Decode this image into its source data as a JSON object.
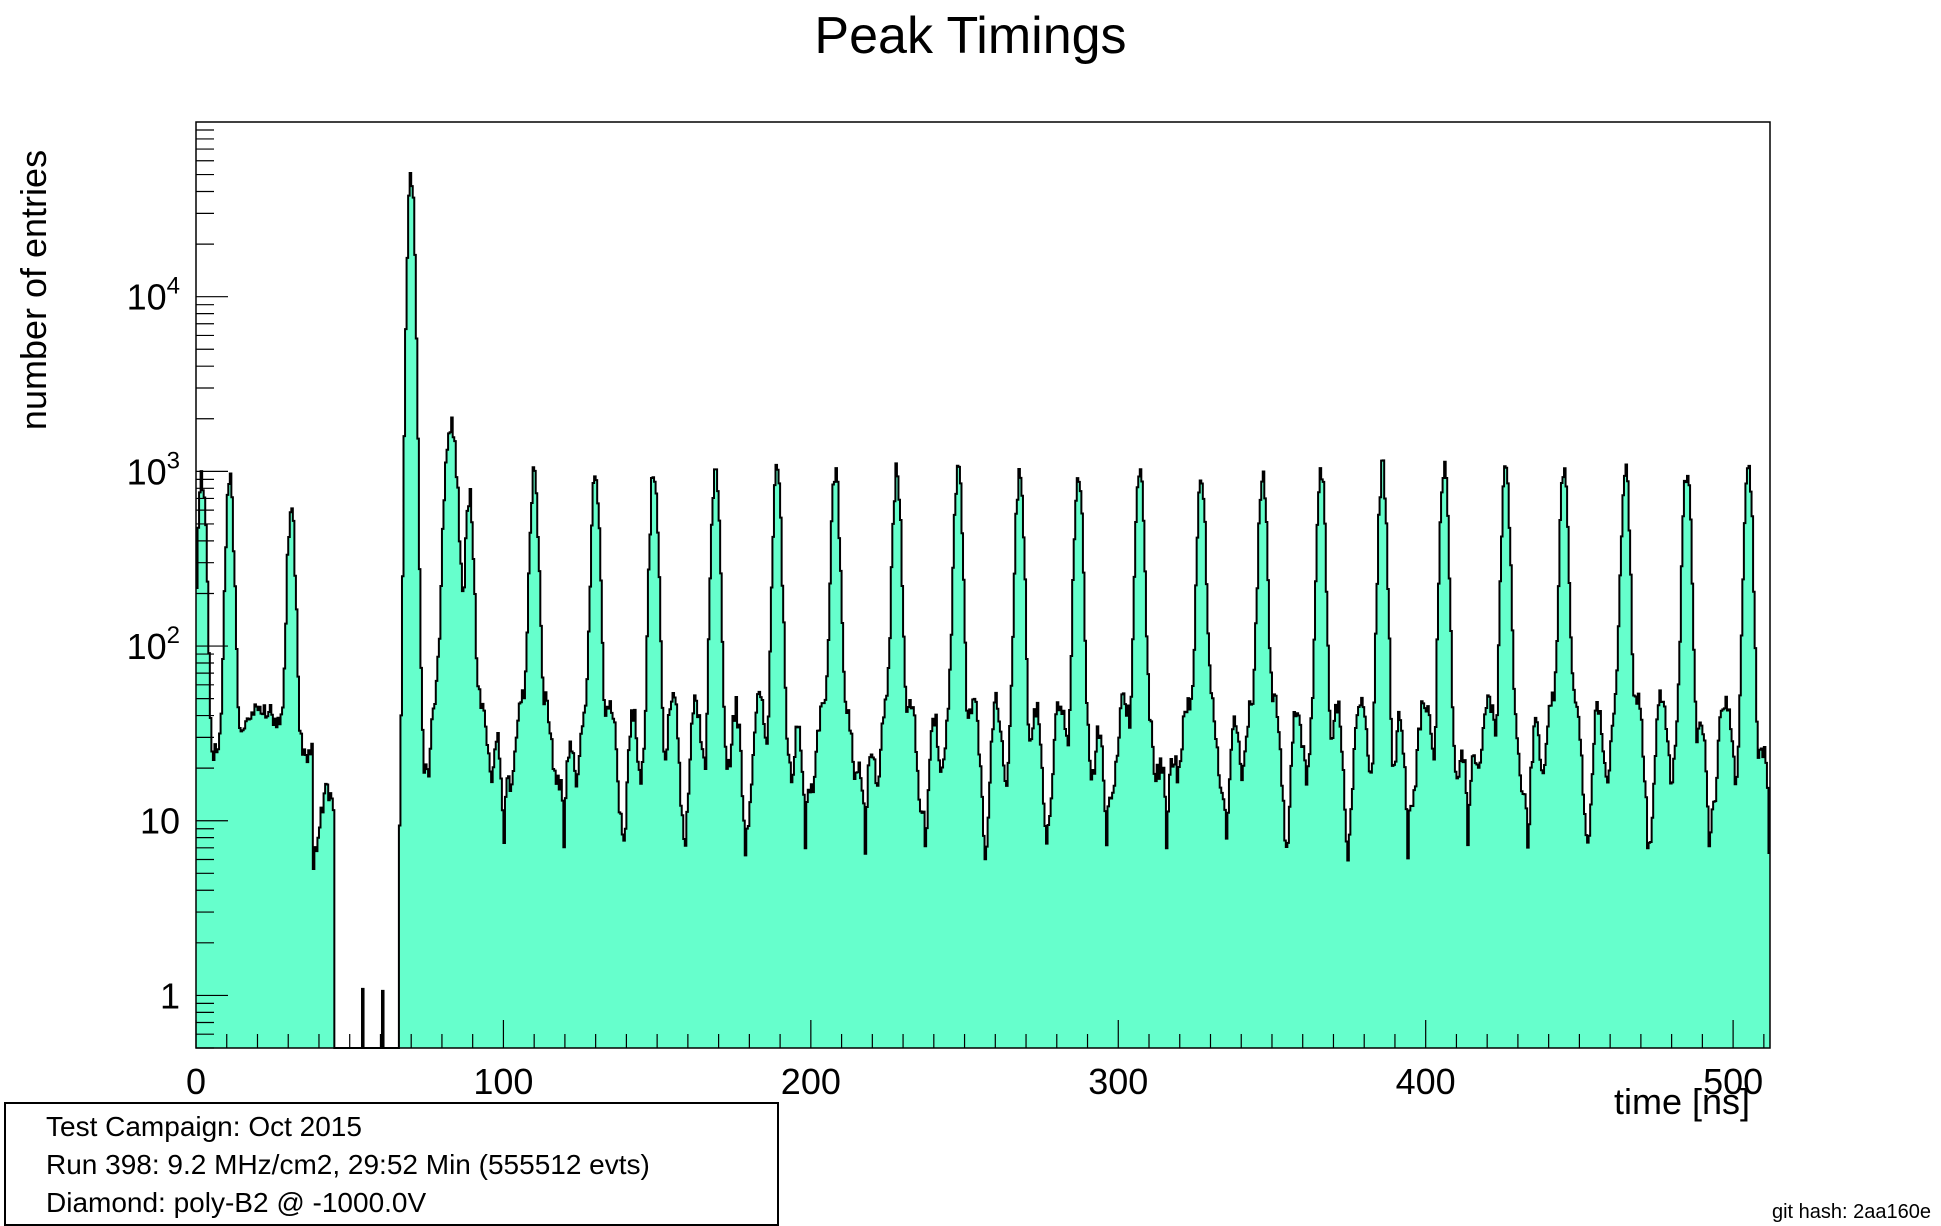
{
  "chart_data": {
    "type": "histogram",
    "title": "Peak Timings",
    "xlabel": "time [ns]",
    "ylabel": "number of entries",
    "xlim": [
      0,
      512
    ],
    "ylim": [
      0.5,
      100000
    ],
    "yscale": "log",
    "grid": false,
    "fill_color": "#66ffcc",
    "line_color": "#000000",
    "x_ticks": [
      "0",
      "100",
      "200",
      "300",
      "400",
      "500"
    ],
    "y_ticks": [
      "1",
      "10",
      "10^2",
      "10^3",
      "10^4"
    ],
    "peaks": [
      {
        "x": 2,
        "y": 900
      },
      {
        "x": 11,
        "y": 850
      },
      {
        "x": 31,
        "y": 600
      },
      {
        "x": 70,
        "y": 50000
      },
      {
        "x": 83,
        "y": 1900
      },
      {
        "x": 89,
        "y": 700
      },
      {
        "x": 110,
        "y": 1000
      },
      {
        "x": 130,
        "y": 1000
      },
      {
        "x": 149,
        "y": 1000
      },
      {
        "x": 169,
        "y": 1000
      },
      {
        "x": 189,
        "y": 1000
      },
      {
        "x": 208,
        "y": 1000
      },
      {
        "x": 228,
        "y": 1000
      },
      {
        "x": 248,
        "y": 1000
      },
      {
        "x": 268,
        "y": 1000
      },
      {
        "x": 287,
        "y": 1000
      },
      {
        "x": 307,
        "y": 1000
      },
      {
        "x": 327,
        "y": 1000
      },
      {
        "x": 347,
        "y": 1000
      },
      {
        "x": 366,
        "y": 1000
      },
      {
        "x": 386,
        "y": 1000
      },
      {
        "x": 406,
        "y": 1000
      },
      {
        "x": 426,
        "y": 1000
      },
      {
        "x": 445,
        "y": 1000
      },
      {
        "x": 465,
        "y": 1000
      },
      {
        "x": 485,
        "y": 1000
      },
      {
        "x": 505,
        "y": 1000
      }
    ],
    "baseline_between_peaks": 45,
    "valley_minimum": 6
  },
  "info": {
    "campaign": "Test Campaign: Oct 2015",
    "run": "Run 398: 9.2 MHz/cm2, 29:52 Min (555512 evts)",
    "diamond": "Diamond: poly-B2 @ -1000.0V"
  },
  "footer": {
    "git_hash": "git hash: 2aa160e"
  }
}
